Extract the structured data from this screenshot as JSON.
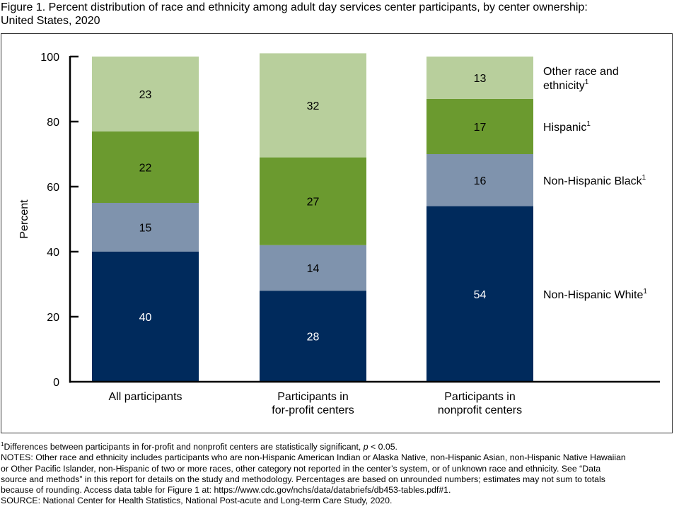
{
  "figure": {
    "title_line1": "Figure 1. Percent distribution of race and ethnicity among adult day services center participants, by center ownership:",
    "title_line2": "United States, 2020"
  },
  "chart_data": {
    "type": "bar",
    "stacked": true,
    "title": "Percent distribution of race and ethnicity among adult day services center participants, by center ownership: United States, 2020",
    "xlabel": "",
    "ylabel": "Percent",
    "ylim": [
      0,
      100
    ],
    "yticks": [
      0,
      20,
      40,
      60,
      80,
      100
    ],
    "grid": false,
    "legend_placement": "right",
    "categories": [
      [
        "All participants"
      ],
      [
        "Participants in",
        "for-profit centers"
      ],
      [
        "Participants in",
        "nonprofit centers"
      ]
    ],
    "series": [
      {
        "name": "Non-Hispanic White",
        "footnote": "1",
        "values": [
          40,
          28,
          54
        ],
        "color": "#002a5c",
        "label_color": "#ffffff"
      },
      {
        "name": "Non-Hispanic Black",
        "footnote": "1",
        "values": [
          15,
          14,
          16
        ],
        "color": "#7f93ad",
        "label_color": "#000000"
      },
      {
        "name": "Hispanic",
        "footnote": "1",
        "values": [
          22,
          27,
          17
        ],
        "color": "#6b9a2f",
        "label_color": "#000000"
      },
      {
        "name": "Other race and ethnicity",
        "legend_lines": [
          "Other race and",
          "ethnicity"
        ],
        "footnote": "1",
        "values": [
          23,
          32,
          13
        ],
        "color": "#b8cf9c",
        "label_color": "#000000"
      }
    ]
  },
  "notes": {
    "footnote_mark": "1",
    "footnote_pre": "Differences between participants in for-profit and nonprofit centers are statistically significant, ",
    "footnote_p": "p",
    "footnote_post": " < 0.05.",
    "lines": [
      "NOTES: Other race and ethnicity includes participants who are non-Hispanic American Indian or Alaska Native, non-Hispanic Asian, non-Hispanic Native Hawaiian",
      "or Other Pacific Islander, non-Hispanic of two or more races, other category not reported in the center’s system, or of unknown race and ethnicity. See “Data",
      "source and methods” in this report for details on the study and methodology. Percentages are based on unrounded numbers; estimates may not sum to totals",
      "because of rounding. Access data table for Figure 1 at: https://www.cdc.gov/nchs/data/databriefs/db453-tables.pdf#1.",
      "SOURCE: National Center for Health Statistics, National Post-acute and Long-term Care Study, 2020."
    ]
  }
}
